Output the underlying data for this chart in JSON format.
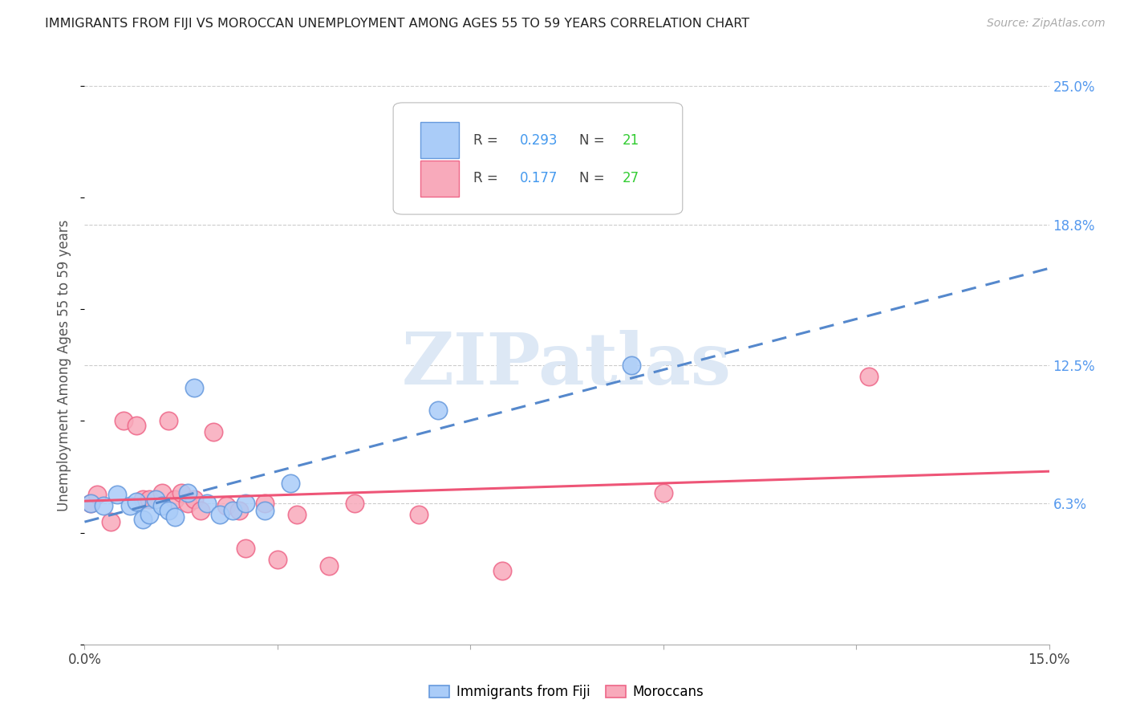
{
  "title": "IMMIGRANTS FROM FIJI VS MOROCCAN UNEMPLOYMENT AMONG AGES 55 TO 59 YEARS CORRELATION CHART",
  "source": "Source: ZipAtlas.com",
  "ylabel": "Unemployment Among Ages 55 to 59 years",
  "xmin": 0.0,
  "xmax": 0.15,
  "ymin": 0.0,
  "ymax": 0.25,
  "x_ticks": [
    0.0,
    0.03,
    0.06,
    0.09,
    0.12,
    0.15
  ],
  "x_tick_labels": [
    "0.0%",
    "",
    "",
    "",
    "",
    "15.0%"
  ],
  "y_ticks_right": [
    0.063,
    0.125,
    0.188,
    0.25
  ],
  "y_tick_labels_right": [
    "6.3%",
    "12.5%",
    "18.8%",
    "25.0%"
  ],
  "legend_fiji_r": "0.293",
  "legend_fiji_n": "21",
  "legend_moroccan_r": "0.177",
  "legend_moroccan_n": "27",
  "fiji_face_color": "#aaccf8",
  "fiji_edge_color": "#6699dd",
  "moroccan_face_color": "#f8aabb",
  "moroccan_edge_color": "#ee6688",
  "fiji_line_color": "#5588cc",
  "moroccan_line_color": "#ee5577",
  "watermark_color": "#dde8f5",
  "fiji_x": [
    0.001,
    0.003,
    0.005,
    0.007,
    0.008,
    0.009,
    0.01,
    0.011,
    0.012,
    0.013,
    0.014,
    0.016,
    0.017,
    0.019,
    0.021,
    0.023,
    0.025,
    0.028,
    0.032,
    0.055,
    0.085
  ],
  "fiji_y": [
    0.063,
    0.062,
    0.067,
    0.062,
    0.064,
    0.056,
    0.058,
    0.065,
    0.062,
    0.06,
    0.057,
    0.068,
    0.115,
    0.063,
    0.058,
    0.06,
    0.063,
    0.06,
    0.072,
    0.105,
    0.125
  ],
  "moroccan_x": [
    0.001,
    0.002,
    0.004,
    0.006,
    0.008,
    0.009,
    0.01,
    0.012,
    0.013,
    0.014,
    0.015,
    0.016,
    0.017,
    0.018,
    0.02,
    0.022,
    0.024,
    0.025,
    0.028,
    0.03,
    0.033,
    0.038,
    0.042,
    0.052,
    0.065,
    0.09,
    0.122
  ],
  "moroccan_y": [
    0.063,
    0.067,
    0.055,
    0.1,
    0.098,
    0.065,
    0.065,
    0.068,
    0.1,
    0.065,
    0.068,
    0.063,
    0.065,
    0.06,
    0.095,
    0.062,
    0.06,
    0.043,
    0.063,
    0.038,
    0.058,
    0.035,
    0.063,
    0.058,
    0.033,
    0.068,
    0.12
  ]
}
